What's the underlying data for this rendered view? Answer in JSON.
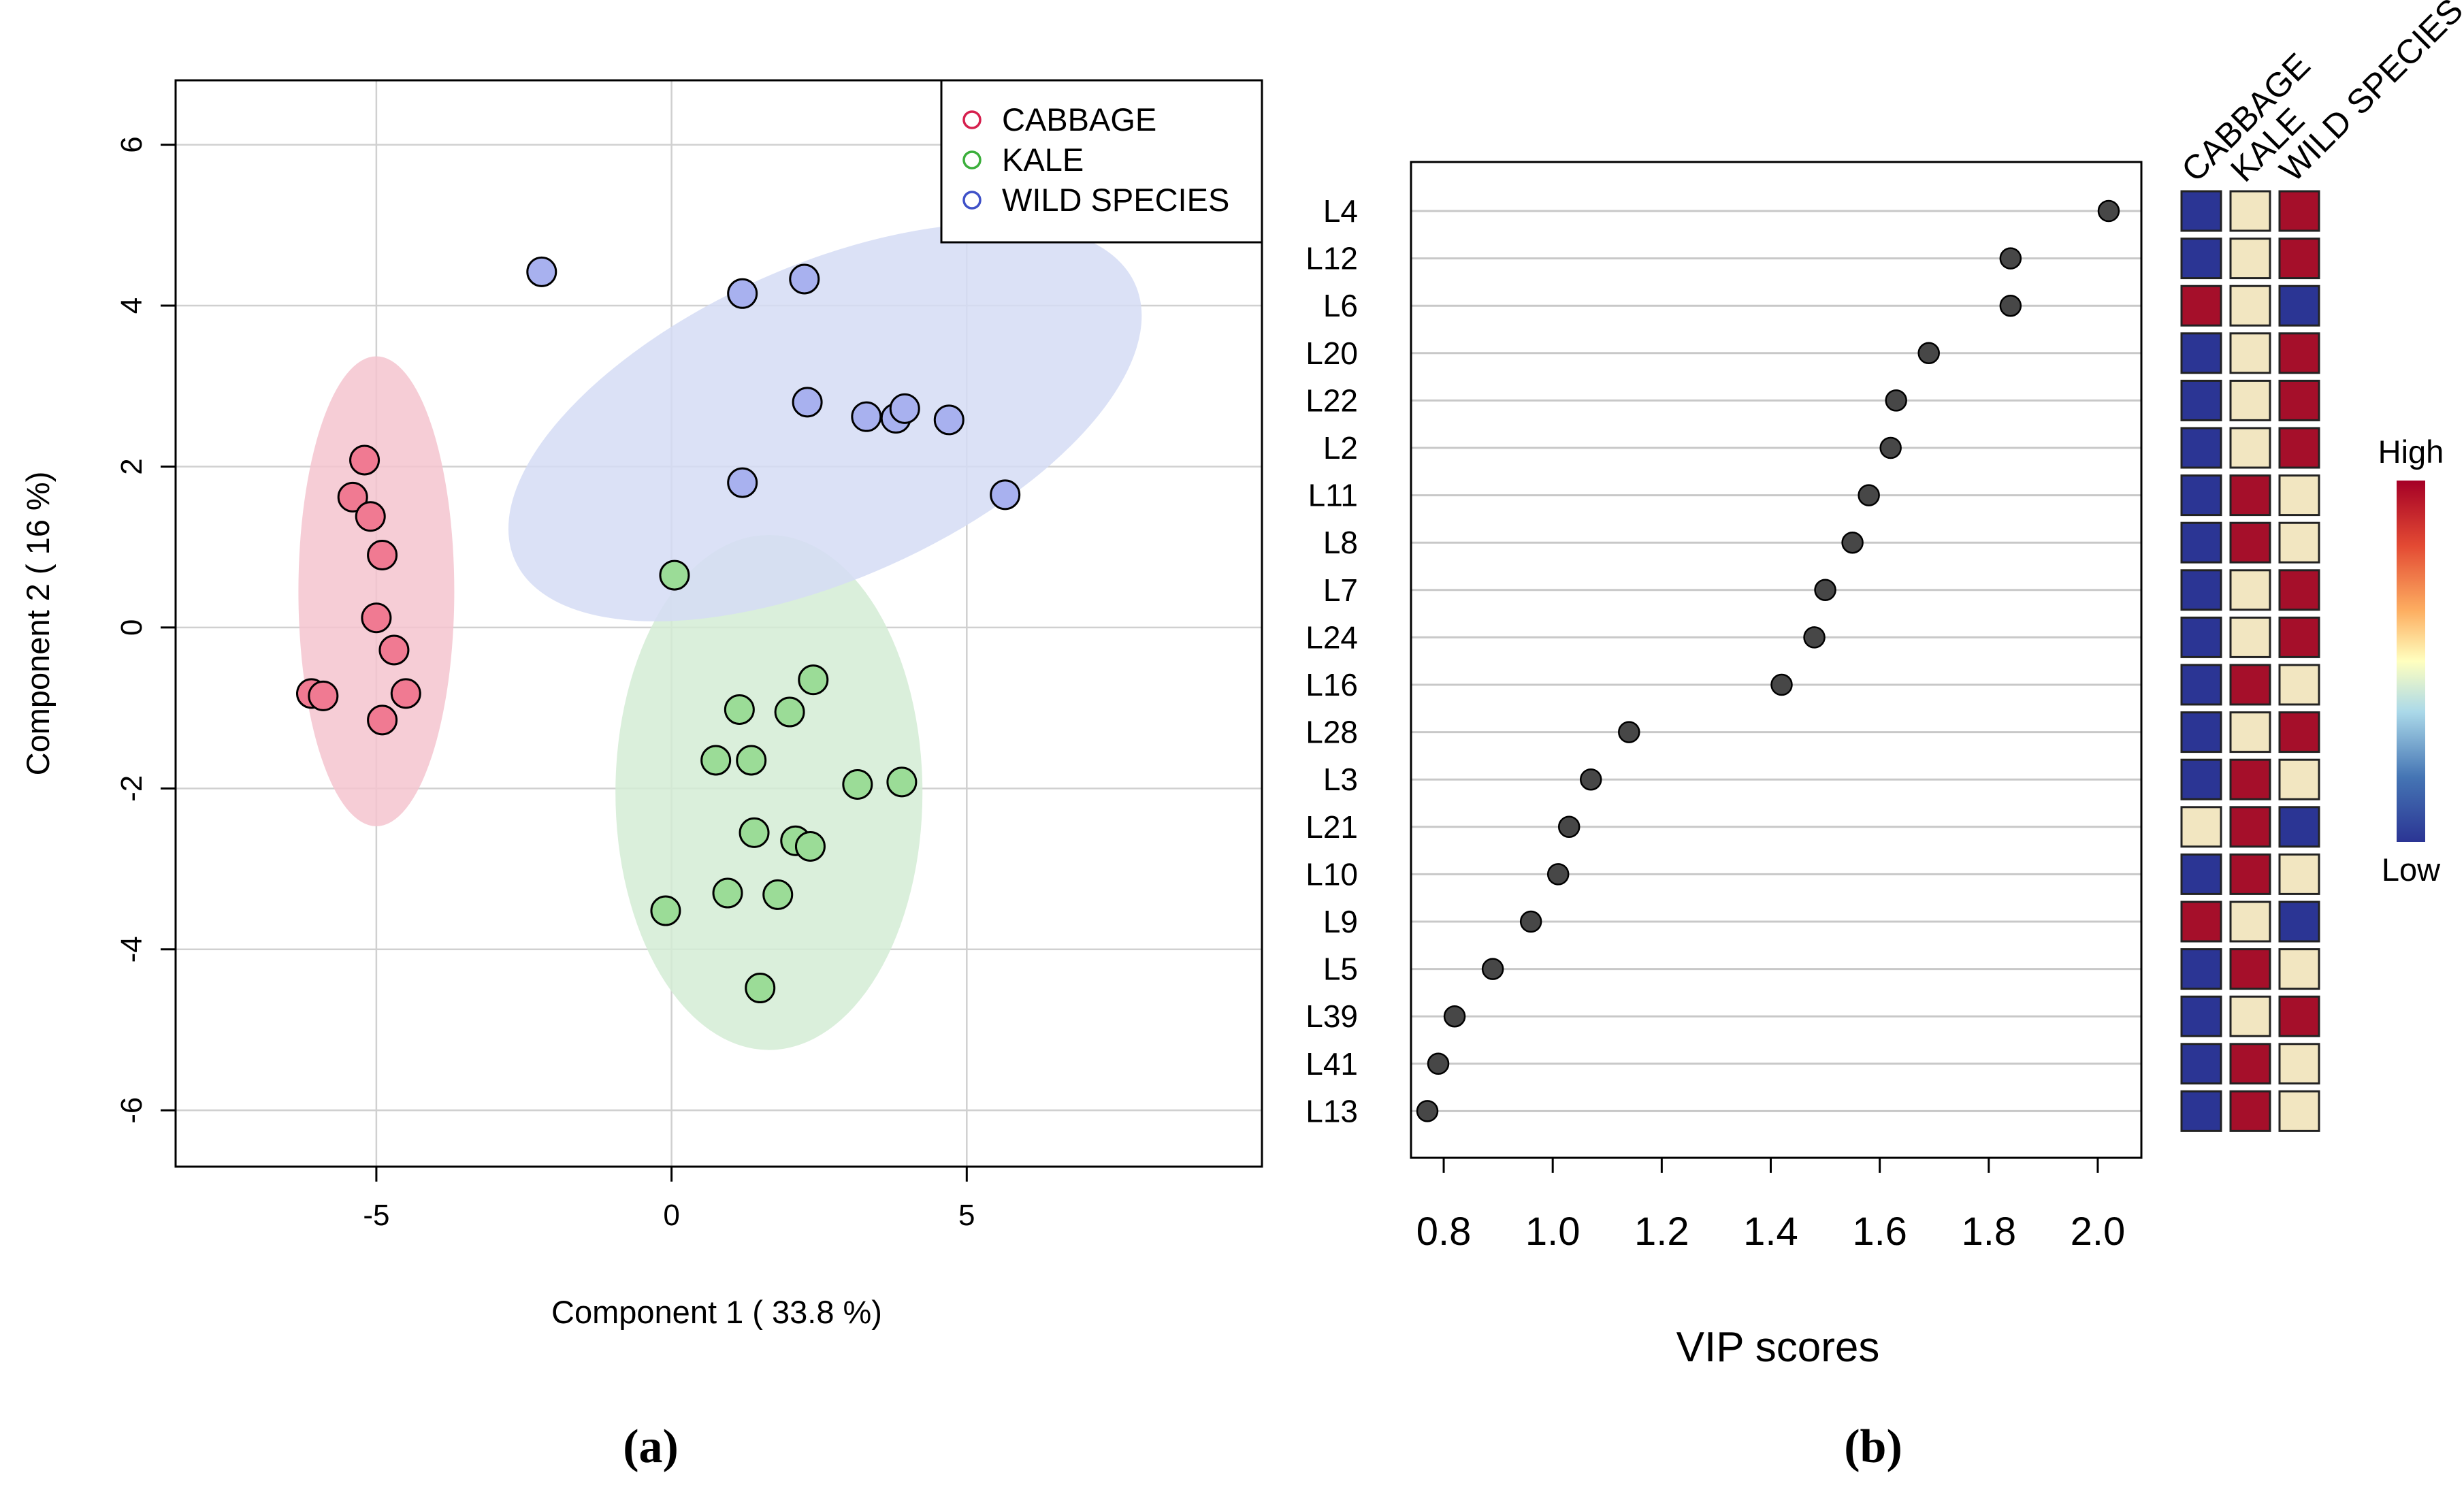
{
  "chart_data": [
    {
      "type": "scatter",
      "panel_label": "(a)",
      "title": "",
      "xlabel": "Component 1 ( 33.8 %)",
      "ylabel": "Component 2 ( 16 %)",
      "xlim": [
        -8.4,
        10
      ],
      "ylim": [
        -6.7,
        6.8
      ],
      "xticks": [
        -5,
        0,
        5
      ],
      "yticks": [
        -6,
        -4,
        -2,
        0,
        2,
        4,
        6
      ],
      "xtick_labels": [
        "-5",
        "0",
        "5"
      ],
      "ytick_labels": [
        "-6",
        "-4",
        "-2",
        "0",
        "2",
        "4",
        "6"
      ],
      "grid": true,
      "legend_position": "top-right",
      "series": [
        {
          "name": "CABBAGE",
          "color": "#f07a92",
          "ellipse_color": "#f5c4cf",
          "legend_color": "#d6204e",
          "ellipse": {
            "cx": -5.0,
            "cy": 0.45,
            "rx": 1.32,
            "ry": 2.92,
            "angle": 0
          },
          "points": [
            [
              -5.2,
              2.08
            ],
            [
              -5.4,
              1.62
            ],
            [
              -5.1,
              1.38
            ],
            [
              -4.9,
              0.9
            ],
            [
              -5.0,
              0.12
            ],
            [
              -4.7,
              -0.28
            ],
            [
              -6.1,
              -0.82
            ],
            [
              -5.9,
              -0.85
            ],
            [
              -4.5,
              -0.82
            ],
            [
              -4.9,
              -1.15
            ]
          ]
        },
        {
          "name": "KALE",
          "color": "#9bdc97",
          "ellipse_color": "#d3ecd5",
          "legend_color": "#3caf3c",
          "ellipse": {
            "cx": 1.65,
            "cy": -2.05,
            "rx": 2.6,
            "ry": 3.2,
            "angle": 0
          },
          "points": [
            [
              0.05,
              0.65
            ],
            [
              1.15,
              -1.02
            ],
            [
              2.0,
              -1.05
            ],
            [
              2.4,
              -0.65
            ],
            [
              0.75,
              -1.65
            ],
            [
              1.35,
              -1.65
            ],
            [
              3.15,
              -1.95
            ],
            [
              3.9,
              -1.92
            ],
            [
              1.4,
              -2.55
            ],
            [
              2.1,
              -2.65
            ],
            [
              2.35,
              -2.72
            ],
            [
              -0.1,
              -3.52
            ],
            [
              0.95,
              -3.3
            ],
            [
              1.8,
              -3.32
            ],
            [
              1.5,
              -4.48
            ]
          ]
        },
        {
          "name": "WILD SPECIES",
          "color": "#a8b1ef",
          "ellipse_color": "#d5dcf5",
          "legend_color": "#3f51c8",
          "ellipse": {
            "cx": 2.6,
            "cy": 2.55,
            "rx": 5.75,
            "ry": 1.95,
            "angle": -24
          },
          "points": [
            [
              -2.2,
              4.42
            ],
            [
              1.2,
              4.15
            ],
            [
              2.25,
              4.33
            ],
            [
              2.3,
              2.8
            ],
            [
              3.3,
              2.62
            ],
            [
              3.8,
              2.6
            ],
            [
              3.95,
              2.72
            ],
            [
              4.7,
              2.58
            ],
            [
              1.2,
              1.8
            ],
            [
              5.65,
              1.65
            ]
          ]
        }
      ]
    },
    {
      "type": "dot",
      "panel_label": "(b)",
      "title": "",
      "xlabel": "VIP scores",
      "ylabel": "",
      "xlim": [
        0.74,
        2.08
      ],
      "xticks": [
        0.8,
        1.0,
        1.2,
        1.4,
        1.6,
        1.8,
        2.0
      ],
      "xtick_labels": [
        "0.8",
        "1.0",
        "1.2",
        "1.4",
        "1.6",
        "1.8",
        "2.0"
      ],
      "categories": [
        "L4",
        "L12",
        "L6",
        "L20",
        "L22",
        "L2",
        "L11",
        "L8",
        "L7",
        "L24",
        "L16",
        "L28",
        "L3",
        "L21",
        "L10",
        "L9",
        "L5",
        "L39",
        "L41",
        "L13"
      ],
      "values": [
        2.02,
        1.84,
        1.84,
        1.69,
        1.63,
        1.62,
        1.58,
        1.55,
        1.5,
        1.48,
        1.42,
        1.14,
        1.07,
        1.03,
        1.01,
        0.96,
        0.89,
        0.82,
        0.79,
        0.77
      ],
      "heatmap": {
        "columns": [
          "CABBAGE",
          "KALE",
          "WILD SPECIES"
        ],
        "colors": {
          "high": "#a50f2a",
          "mid": "#f2e6c1",
          "low": "#2b3594"
        },
        "cells": [
          [
            "low",
            "mid",
            "high"
          ],
          [
            "low",
            "mid",
            "high"
          ],
          [
            "high",
            "mid",
            "low"
          ],
          [
            "low",
            "mid",
            "high"
          ],
          [
            "low",
            "mid",
            "high"
          ],
          [
            "low",
            "mid",
            "high"
          ],
          [
            "low",
            "high",
            "mid"
          ],
          [
            "low",
            "high",
            "mid"
          ],
          [
            "low",
            "mid",
            "high"
          ],
          [
            "low",
            "mid",
            "high"
          ],
          [
            "low",
            "high",
            "mid"
          ],
          [
            "low",
            "mid",
            "high"
          ],
          [
            "low",
            "high",
            "mid"
          ],
          [
            "mid",
            "high",
            "low"
          ],
          [
            "low",
            "high",
            "mid"
          ],
          [
            "high",
            "mid",
            "low"
          ],
          [
            "low",
            "high",
            "mid"
          ],
          [
            "low",
            "mid",
            "high"
          ],
          [
            "low",
            "high",
            "mid"
          ],
          [
            "low",
            "high",
            "mid"
          ]
        ]
      },
      "colorbar": {
        "high_label": "High",
        "low_label": "Low"
      }
    }
  ]
}
